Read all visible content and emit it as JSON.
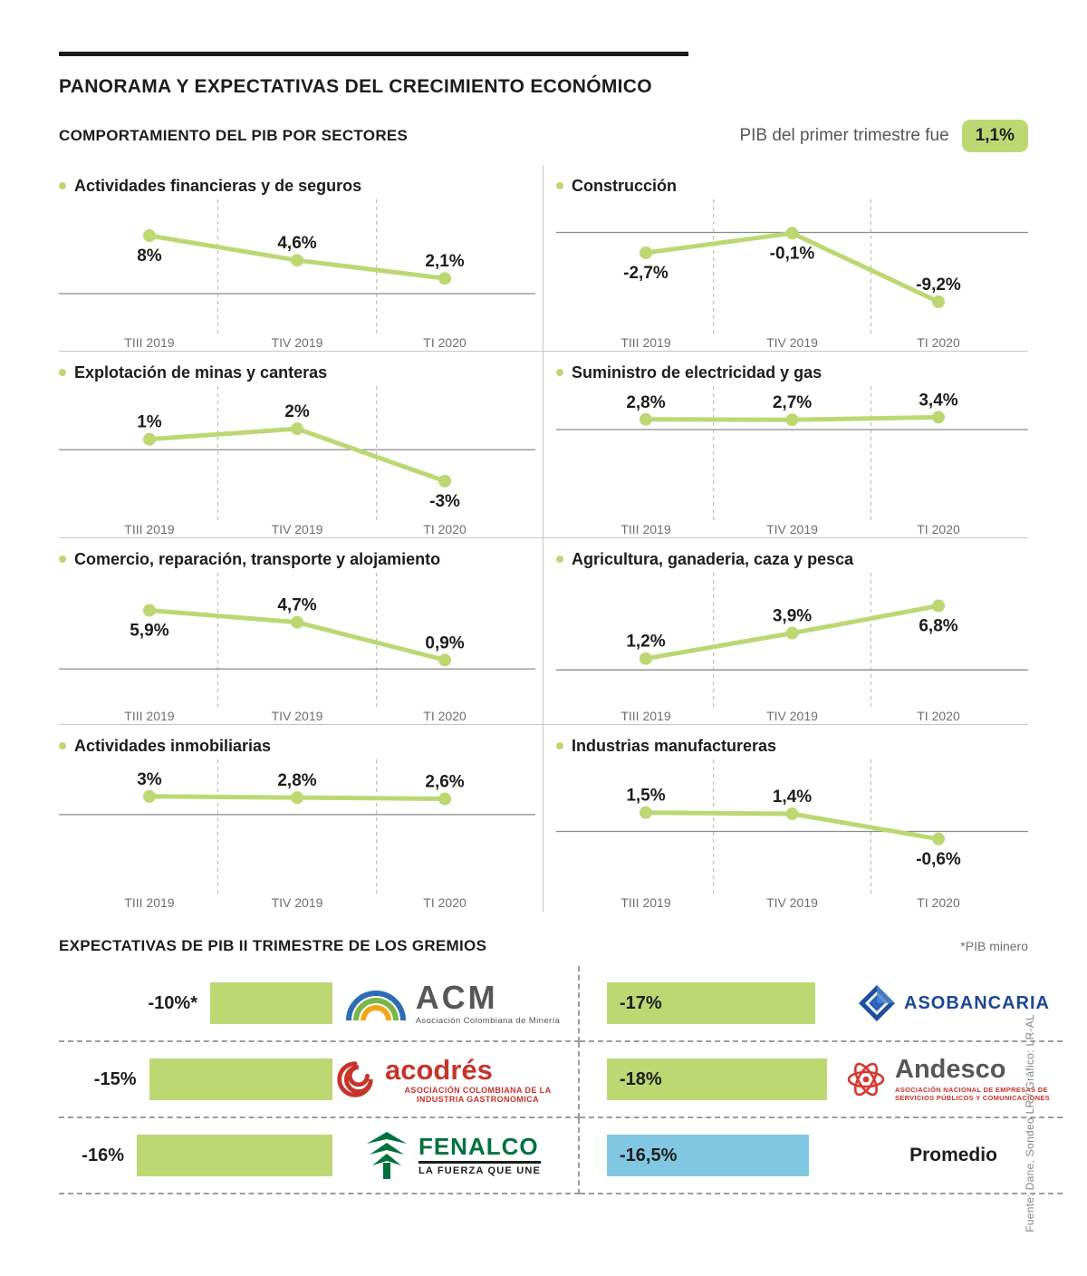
{
  "header": {
    "title": "PANORAMA Y EXPECTATIVAS DEL CRECIMIENTO ECONÓMICO",
    "section1_title": "COMPORTAMIENTO DEL PIB POR SECTORES",
    "pib_note": "PIB del primer trimestre fue",
    "pib_value": "1,1%"
  },
  "colors": {
    "green": "#bdd873",
    "blue": "#82c7e2",
    "dark": "#1d1d1b",
    "axis": "#8c8c8c",
    "muted": "#706f6f"
  },
  "chart_data": [
    {
      "type": "line",
      "title": "Actividades financieras y de seguros",
      "categories": [
        "TIII 2019",
        "TIV 2019",
        "TI 2020"
      ],
      "values": [
        8,
        4.6,
        2.1
      ],
      "value_labels": [
        "8%",
        "4,6%",
        "2,1%"
      ],
      "label_pos": [
        "below",
        "above",
        "above"
      ],
      "ylim": [
        -3,
        10
      ]
    },
    {
      "type": "line",
      "title": "Construcción",
      "categories": [
        "TIII 2019",
        "TIV 2019",
        "TI 2020"
      ],
      "values": [
        -2.7,
        -0.1,
        -9.2
      ],
      "value_labels": [
        "-2,7%",
        "-0,1%",
        "-9,2%"
      ],
      "label_pos": [
        "below",
        "below",
        "above"
      ],
      "ylim": [
        -11,
        1.5
      ]
    },
    {
      "type": "line",
      "title": "Explotación de minas y canteras",
      "categories": [
        "TIII 2019",
        "TIV 2019",
        "TI 2020"
      ],
      "values": [
        1,
        2,
        -3
      ],
      "value_labels": [
        "1%",
        "2%",
        "-3%"
      ],
      "label_pos": [
        "above",
        "above",
        "below"
      ],
      "ylim": [
        -5,
        4
      ]
    },
    {
      "type": "line",
      "title": "Suministro de electricidad y gas",
      "categories": [
        "TIII 2019",
        "TIV 2019",
        "TI 2020"
      ],
      "values": [
        2.8,
        2.7,
        3.4
      ],
      "value_labels": [
        "2,8%",
        "2,7%",
        "3,4%"
      ],
      "label_pos": [
        "above",
        "above",
        "above"
      ],
      "ylim": [
        -20,
        6
      ]
    },
    {
      "type": "line",
      "title": "Comercio, reparación, transporte y alojamiento",
      "categories": [
        "TIII 2019",
        "TIV 2019",
        "TI 2020"
      ],
      "values": [
        5.9,
        4.7,
        0.9
      ],
      "value_labels": [
        "5,9%",
        "4,7%",
        "0,9%"
      ],
      "label_pos": [
        "below",
        "above",
        "above"
      ],
      "ylim": [
        -2,
        7.5
      ]
    },
    {
      "type": "line",
      "title": "Agricultura, ganaderia, caza y pesca",
      "categories": [
        "TIII 2019",
        "TIV 2019",
        "TI 2020"
      ],
      "values": [
        1.2,
        3.9,
        6.8
      ],
      "value_labels": [
        "1,2%",
        "3,9%",
        "6,8%"
      ],
      "label_pos": [
        "above",
        "above",
        "below"
      ],
      "ylim": [
        -2,
        8
      ]
    },
    {
      "type": "line",
      "title": "Actividades inmobiliarias",
      "categories": [
        "TIII 2019",
        "TIV 2019",
        "TI 2020"
      ],
      "values": [
        3,
        2.8,
        2.6
      ],
      "value_labels": [
        "3%",
        "2,8%",
        "2,6%"
      ],
      "label_pos": [
        "above",
        "above",
        "above"
      ],
      "ylim": [
        -10,
        5.5
      ]
    },
    {
      "type": "line",
      "title": "Industrias manufactureras",
      "categories": [
        "TIII 2019",
        "TIV 2019",
        "TI 2020"
      ],
      "values": [
        1.5,
        1.4,
        -0.6
      ],
      "value_labels": [
        "1,5%",
        "1,4%",
        "-0,6%"
      ],
      "label_pos": [
        "above",
        "above",
        "below"
      ],
      "ylim": [
        -3.5,
        4
      ]
    },
    {
      "type": "bar",
      "title": "EXPECTATIVAS DE PIB II TRIMESTRE DE LOS GREMIOS",
      "note": "*PIB minero",
      "unit": "%",
      "items": [
        {
          "org": "ACM",
          "caption": "Asociación Colombiana de Minería",
          "value": -10,
          "label": "-10%*",
          "color": "green"
        },
        {
          "org": "ASOBANCARIA",
          "value": -17,
          "label": "-17%",
          "color": "green"
        },
        {
          "org": "acodrés",
          "caption": "ASOCIACIÓN COLOMBIANA DE LA INDUSTRIA GASTRONOMICA",
          "value": -15,
          "label": "-15%",
          "color": "green"
        },
        {
          "org": "Andesco",
          "caption": "ASOCIACIÓN NACIONAL DE EMPRESAS DE SERVICIOS PÚBLICOS Y COMUNICACIONES",
          "value": -18,
          "label": "-18%",
          "color": "green"
        },
        {
          "org": "FENALCO",
          "caption": "LA FUERZA QUE UNE",
          "value": -16,
          "label": "-16%",
          "color": "green"
        },
        {
          "org": "Promedio",
          "value": -16.5,
          "label": "-16,5%",
          "color": "blue"
        }
      ]
    }
  ],
  "source": "Fuente: Dane, Sondeo LR / Gráfico: LR-AL"
}
